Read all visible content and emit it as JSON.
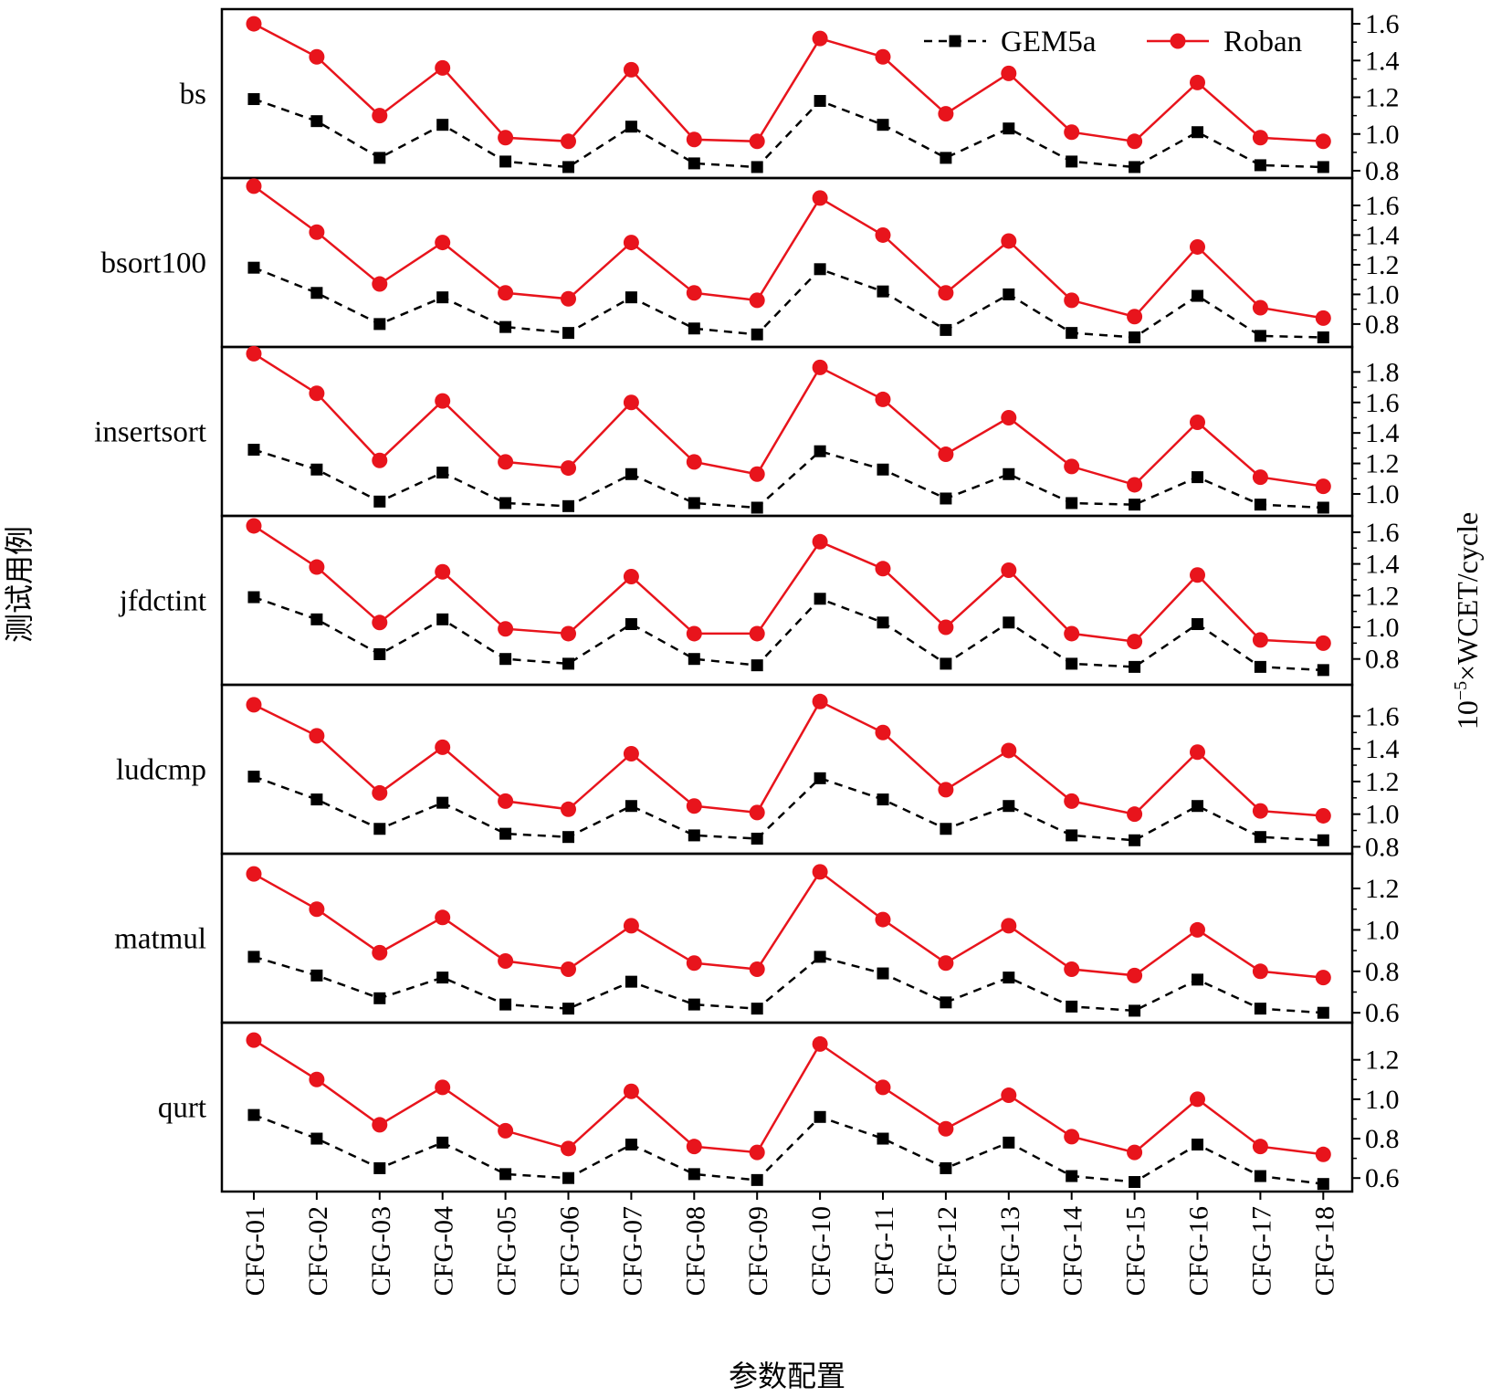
{
  "chart_data": {
    "type": "line",
    "xlabel": "参数配置",
    "ylabel_left": "测试用例",
    "ylabel_right": "10⁻⁵×WCET/cycle",
    "ylabel_right_parts": {
      "base": "10",
      "exp": "−5",
      "rest": "×WCET/cycle"
    },
    "categories": [
      "CFG-01",
      "CFG-02",
      "CFG-03",
      "CFG-04",
      "CFG-05",
      "CFG-06",
      "CFG-07",
      "CFG-08",
      "CFG-09",
      "CFG-10",
      "CFG-11",
      "CFG-12",
      "CFG-13",
      "CFG-14",
      "CFG-15",
      "CFG-16",
      "CFG-17",
      "CFG-18"
    ],
    "legend": {
      "position": "top-right",
      "entries": [
        {
          "name": "GEM5a",
          "color": "#000000",
          "dash": true,
          "marker": "square"
        },
        {
          "name": "Roban",
          "color": "#e8141c",
          "dash": false,
          "marker": "circle"
        }
      ]
    },
    "panels": [
      {
        "name": "bs",
        "ylim": [
          0.78,
          1.66
        ],
        "yticks": [
          0.8,
          1.0,
          1.2,
          1.4,
          1.6
        ],
        "ytick_labels": [
          "0.8",
          "1.0",
          "1.2",
          "1.4",
          "1.6"
        ],
        "series": [
          {
            "name": "GEM5a",
            "values": [
              1.19,
              1.07,
              0.87,
              1.05,
              0.85,
              0.82,
              1.04,
              0.84,
              0.82,
              1.18,
              1.05,
              0.87,
              1.03,
              0.85,
              0.82,
              1.01,
              0.83,
              0.82
            ]
          },
          {
            "name": "Roban",
            "values": [
              1.6,
              1.42,
              1.1,
              1.36,
              0.98,
              0.96,
              1.35,
              0.97,
              0.96,
              1.52,
              1.42,
              1.11,
              1.33,
              1.01,
              0.96,
              1.28,
              0.98,
              0.96
            ]
          }
        ]
      },
      {
        "name": "bsort100",
        "ylim": [
          0.67,
          1.76
        ],
        "yticks": [
          0.8,
          1.0,
          1.2,
          1.4,
          1.6
        ],
        "ytick_labels": [
          "0.8",
          "1.0",
          "1.2",
          "1.4",
          "1.6"
        ],
        "series": [
          {
            "name": "GEM5a",
            "values": [
              1.18,
              1.01,
              0.8,
              0.98,
              0.78,
              0.74,
              0.98,
              0.77,
              0.73,
              1.17,
              1.02,
              0.76,
              1.0,
              0.74,
              0.71,
              0.99,
              0.72,
              0.71
            ]
          },
          {
            "name": "Roban",
            "values": [
              1.73,
              1.42,
              1.07,
              1.35,
              1.01,
              0.97,
              1.35,
              1.01,
              0.96,
              1.65,
              1.4,
              1.01,
              1.36,
              0.96,
              0.85,
              1.32,
              0.91,
              0.84
            ]
          }
        ]
      },
      {
        "name": "insertsort",
        "ylim": [
          0.88,
          1.94
        ],
        "yticks": [
          1.0,
          1.2,
          1.4,
          1.6,
          1.8
        ],
        "ytick_labels": [
          "1.0",
          "1.2",
          "1.4",
          "1.6",
          "1.8"
        ],
        "series": [
          {
            "name": "GEM5a",
            "values": [
              1.29,
              1.16,
              0.95,
              1.14,
              0.94,
              0.92,
              1.13,
              0.94,
              0.91,
              1.28,
              1.16,
              0.97,
              1.13,
              0.94,
              0.93,
              1.11,
              0.93,
              0.91
            ]
          },
          {
            "name": "Roban",
            "values": [
              1.92,
              1.66,
              1.22,
              1.61,
              1.21,
              1.17,
              1.6,
              1.21,
              1.13,
              1.83,
              1.62,
              1.26,
              1.5,
              1.18,
              1.06,
              1.47,
              1.11,
              1.05
            ]
          }
        ]
      },
      {
        "name": "jfdctint",
        "ylim": [
          0.66,
          1.68
        ],
        "yticks": [
          0.8,
          1.0,
          1.2,
          1.4,
          1.6
        ],
        "ytick_labels": [
          "0.8",
          "1.0",
          "1.2",
          "1.4",
          "1.6"
        ],
        "series": [
          {
            "name": "GEM5a",
            "values": [
              1.19,
              1.05,
              0.83,
              1.05,
              0.8,
              0.77,
              1.02,
              0.8,
              0.76,
              1.18,
              1.03,
              0.77,
              1.03,
              0.77,
              0.75,
              1.02,
              0.75,
              0.73
            ]
          },
          {
            "name": "Roban",
            "values": [
              1.64,
              1.38,
              1.03,
              1.35,
              0.99,
              0.96,
              1.32,
              0.96,
              0.96,
              1.54,
              1.37,
              1.0,
              1.36,
              0.96,
              0.91,
              1.33,
              0.92,
              0.9
            ]
          }
        ]
      },
      {
        "name": "ludcmp",
        "ylim": [
          0.78,
          1.77
        ],
        "yticks": [
          0.8,
          1.0,
          1.2,
          1.4,
          1.6
        ],
        "ytick_labels": [
          "0.8",
          "1.0",
          "1.2",
          "1.4",
          "1.6"
        ],
        "series": [
          {
            "name": "GEM5a",
            "values": [
              1.23,
              1.09,
              0.91,
              1.07,
              0.88,
              0.86,
              1.05,
              0.87,
              0.85,
              1.22,
              1.09,
              0.91,
              1.05,
              0.87,
              0.84,
              1.05,
              0.86,
              0.84
            ]
          },
          {
            "name": "Roban",
            "values": [
              1.67,
              1.48,
              1.13,
              1.41,
              1.08,
              1.03,
              1.37,
              1.05,
              1.01,
              1.69,
              1.5,
              1.15,
              1.39,
              1.08,
              1.0,
              1.38,
              1.02,
              0.99
            ]
          }
        ]
      },
      {
        "name": "matmul",
        "ylim": [
          0.57,
          1.35
        ],
        "yticks": [
          0.6,
          0.8,
          1.0,
          1.2
        ],
        "ytick_labels": [
          "0.6",
          "0.8",
          "1.0",
          "1.2"
        ],
        "series": [
          {
            "name": "GEM5a",
            "values": [
              0.87,
              0.78,
              0.67,
              0.77,
              0.64,
              0.62,
              0.75,
              0.64,
              0.62,
              0.87,
              0.79,
              0.65,
              0.77,
              0.63,
              0.61,
              0.76,
              0.62,
              0.6
            ]
          },
          {
            "name": "Roban",
            "values": [
              1.27,
              1.1,
              0.89,
              1.06,
              0.85,
              0.81,
              1.02,
              0.84,
              0.81,
              1.28,
              1.05,
              0.84,
              1.02,
              0.81,
              0.78,
              1.0,
              0.8,
              0.77
            ]
          }
        ]
      },
      {
        "name": "qurt",
        "ylim": [
          0.55,
          1.37
        ],
        "yticks": [
          0.6,
          0.8,
          1.0,
          1.2
        ],
        "ytick_labels": [
          "0.6",
          "0.8",
          "1.0",
          "1.2"
        ],
        "series": [
          {
            "name": "GEM5a",
            "values": [
              0.92,
              0.8,
              0.65,
              0.78,
              0.62,
              0.6,
              0.77,
              0.62,
              0.59,
              0.91,
              0.8,
              0.65,
              0.78,
              0.61,
              0.58,
              0.77,
              0.61,
              0.57
            ]
          },
          {
            "name": "Roban",
            "values": [
              1.3,
              1.1,
              0.87,
              1.06,
              0.84,
              0.75,
              1.04,
              0.76,
              0.73,
              1.28,
              1.06,
              0.85,
              1.02,
              0.81,
              0.73,
              1.0,
              0.76,
              0.72
            ]
          }
        ]
      }
    ]
  }
}
